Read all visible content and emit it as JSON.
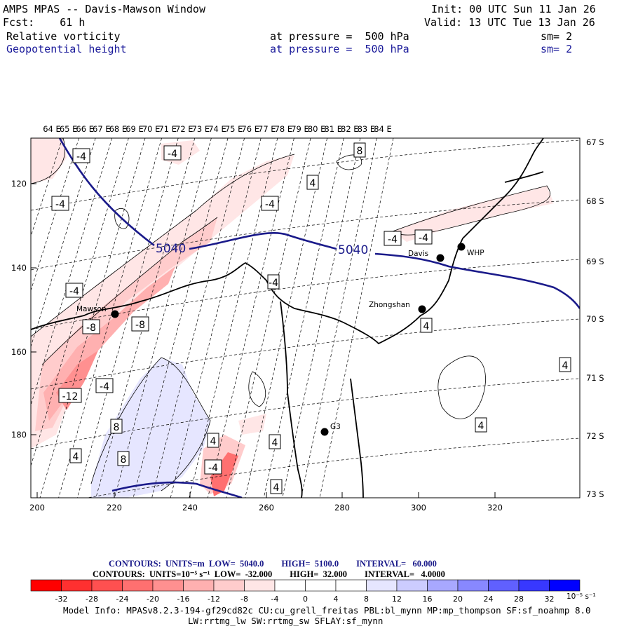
{
  "header": {
    "line1_left": "AMPS MPAS -- Davis-Mawson Window",
    "line2_left": "Fcst:    61 h",
    "line1_right": "Init: 00 UTC Sun 11 Jan 26",
    "line2_right": "Valid: 13 UTC Tue 13 Jan 26",
    "field1_name": "Relative vorticity",
    "field1_level": "at pressure =  500 hPa",
    "field1_sm": "sm= 2",
    "field2_name": "Geopotential height",
    "field2_level": "at pressure =  500 hPa",
    "field2_sm": "sm= 2"
  },
  "map": {
    "top_longitudes": [
      "64 E",
      "65 E",
      "66 E",
      "67 E",
      "68 E",
      "69 E",
      "70 E",
      "71 E",
      "72 E",
      "73 E",
      "74 E",
      "75 E",
      "76 E",
      "77 E",
      "78 E",
      "79 E",
      "80 E",
      "81 E",
      "82 E",
      "83 E",
      "84 E"
    ],
    "right_latitudes": [
      "67 S",
      "68 S",
      "69 S",
      "70 S",
      "71 S",
      "72 S",
      "73 S"
    ],
    "left_ticks": [
      "120",
      "140",
      "160",
      "180"
    ],
    "bottom_ticks": [
      "200",
      "220",
      "240",
      "260",
      "280",
      "300",
      "320"
    ],
    "stations": [
      {
        "name": "Mawson"
      },
      {
        "name": "Davis"
      },
      {
        "name": "WHP"
      },
      {
        "name": "Zhongshan"
      },
      {
        "name": "G3"
      }
    ],
    "height_labels": [
      "5040",
      "5040"
    ],
    "vort_labels": [
      "-4",
      "-4",
      "-4",
      "-4",
      "-4",
      "-4",
      "-4",
      "-4",
      "-4",
      "-4",
      "-8",
      "-8",
      "-12",
      "4",
      "4",
      "4",
      "4",
      "4",
      "4",
      "4",
      "4",
      "8",
      "8",
      "8"
    ]
  },
  "legend": {
    "line1": "CONTOURS:  UNITS=m  LOW=  5040.0        HIGH=  5100.0        INTERVAL=   60.000",
    "line2": "CONTOURS:  UNITS=10⁻⁵ s⁻¹  LOW=  -32.000        HIGH=  32.000        INTERVAL=   4.0000",
    "scale_labels": [
      "-32",
      "-28",
      "-24",
      "-20",
      "-16",
      "-12",
      "-8",
      "-4",
      "0",
      "4",
      "8",
      "12",
      "16",
      "20",
      "24",
      "28",
      "32"
    ],
    "units_label": "10⁻⁵ s⁻¹",
    "colors": [
      "#ff0000",
      "#ff3030",
      "#ff5050",
      "#ff7070",
      "#ff9090",
      "#ffb0b0",
      "#ffcccc",
      "#ffe6e6",
      "#ffffff",
      "#ffffff",
      "#e6e6ff",
      "#ccccff",
      "#a8a8ff",
      "#8888ff",
      "#6060ff",
      "#3838ff",
      "#0000ff"
    ]
  },
  "footer": {
    "line1": "Model Info: MPASv8.2.3-194-gf29cd82c CU:cu_grell_freitas PBL:bl_mynn MP:mp_thompson SF:sf_noahmp 8.0",
    "line2": "LW:rrtmg_lw SW:rrtmg_sw SFLAY:sf_mynn"
  }
}
